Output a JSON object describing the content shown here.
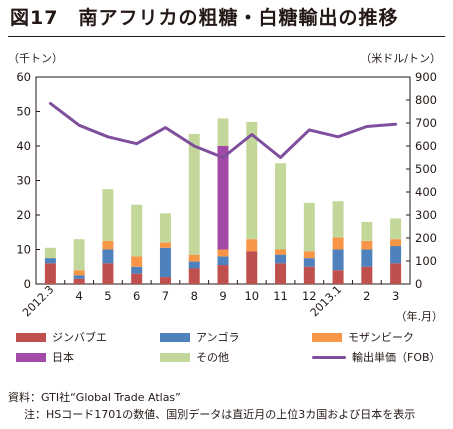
{
  "header": {
    "title": "図17　南アフリカの粗糖・白糖輸出の推移",
    "unit_left": "（千トン）",
    "unit_right": "（米ドル/トン）"
  },
  "footer": {
    "source": "資料：GTI社“Global Trade Atlas”",
    "note": "注：HSコード1701の数値、国別データは直近月の上位3カ国および日本を表示"
  },
  "chart_data": {
    "type": "bar",
    "stacked": true,
    "categories": [
      "2012.3",
      "4",
      "5",
      "6",
      "7",
      "8",
      "9",
      "10",
      "11",
      "12",
      "2013.1",
      "2",
      "3"
    ],
    "xlabel": "（年.月）",
    "ylim_left": [
      0,
      60
    ],
    "yticks_left": [
      0,
      10,
      20,
      30,
      40,
      50,
      60
    ],
    "ylim_right": [
      0,
      900
    ],
    "yticks_right": [
      0,
      100,
      200,
      300,
      400,
      500,
      600,
      700,
      800,
      900
    ],
    "grid": false,
    "legend_position": "bottom",
    "series": [
      {
        "name": "ジンバブエ",
        "color": "#c0504d",
        "values": [
          6,
          1.5,
          6,
          3,
          2,
          4.5,
          5.5,
          9.5,
          6,
          5,
          4,
          5,
          6
        ]
      },
      {
        "name": "アンゴラ",
        "color": "#4f81bd",
        "values": [
          1.5,
          1,
          4,
          2,
          8.5,
          2,
          2.5,
          0,
          2.5,
          2.5,
          6,
          5,
          5
        ]
      },
      {
        "name": "モザンビーク",
        "color": "#f79646",
        "values": [
          0,
          1.5,
          2.5,
          3,
          1.5,
          2,
          2,
          3.5,
          1.5,
          2,
          3.5,
          2.5,
          2
        ]
      },
      {
        "name": "日本",
        "color": "#a34aa8",
        "values": [
          0,
          0,
          0,
          0,
          0,
          0,
          30,
          0,
          0,
          0,
          0,
          0,
          0
        ]
      },
      {
        "name": "その他",
        "color": "#c4d79b",
        "values": [
          3,
          9,
          15,
          15,
          8.5,
          35,
          8,
          34,
          25,
          14,
          10.5,
          5.5,
          6
        ]
      }
    ],
    "line_series": {
      "name": "輸出単価（FOB）",
      "color": "#7f4f9e",
      "axis": "right",
      "values": [
        785,
        690,
        640,
        610,
        680,
        600,
        550,
        650,
        550,
        670,
        640,
        685,
        695
      ]
    }
  }
}
